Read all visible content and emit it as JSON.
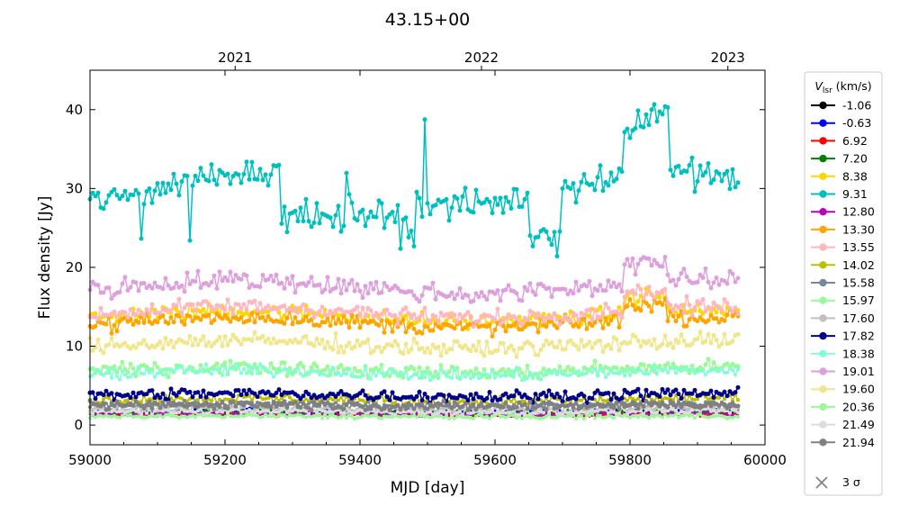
{
  "chart_data": {
    "type": "line",
    "title": "43.15+00",
    "xlabel": "MJD [day]",
    "ylabel": "Flux density [Jy]",
    "xlim": [
      59000,
      60000
    ],
    "ylim": [
      -2.5,
      45
    ],
    "xticks": [
      "59000",
      "59200",
      "59400",
      "59600",
      "59800",
      "60000"
    ],
    "yticks": [
      "0",
      "10",
      "20",
      "30",
      "40"
    ],
    "top_axis": {
      "ticks": [
        {
          "label": "2021",
          "mjd": 59215
        },
        {
          "label": "2022",
          "mjd": 59580
        },
        {
          "label": "2023",
          "mjd": 59945
        }
      ]
    },
    "legend": {
      "title_main": "V",
      "title_sub": "lsr",
      "title_unit": "(km/s)",
      "sigma_label": "3 σ",
      "sigma_color": "#808080",
      "placement": "outside-right"
    },
    "x_end": 59962,
    "series": [
      {
        "name": "-1.06",
        "color": "#000000",
        "base": 1.5,
        "noise": 0.2,
        "dot": 3
      },
      {
        "name": "-0.63",
        "color": "#0000ff",
        "base": 1.8,
        "noise": 0.2,
        "dot": 3
      },
      {
        "name": "6.92",
        "color": "#ff0000",
        "base": 1.3,
        "noise": 0.15,
        "dot": 3
      },
      {
        "name": "7.20",
        "color": "#008000",
        "base": 1.6,
        "noise": 0.2,
        "dot": 3
      },
      {
        "name": "8.38",
        "color": "#ffd700",
        "base": 13.8,
        "noise": 0.7,
        "dot": 5
      },
      {
        "name": "9.31",
        "color": "#00bfbf",
        "base": 29.5,
        "noise": 1.3,
        "dot": 5
      },
      {
        "name": "12.80",
        "color": "#bf00bf",
        "base": 1.4,
        "noise": 0.2,
        "dot": 3
      },
      {
        "name": "13.30",
        "color": "#ffa500",
        "base": 13.0,
        "noise": 0.7,
        "dot": 5
      },
      {
        "name": "13.55",
        "color": "#ffb6c1",
        "base": 14.3,
        "noise": 0.7,
        "dot": 5
      },
      {
        "name": "14.02",
        "color": "#bfbf00",
        "base": 3.2,
        "noise": 0.4,
        "dot": 4
      },
      {
        "name": "15.58",
        "color": "#778899",
        "base": 2.5,
        "noise": 0.3,
        "dot": 4
      },
      {
        "name": "15.97",
        "color": "#98fb98",
        "base": 7.0,
        "noise": 0.6,
        "dot": 5
      },
      {
        "name": "17.60",
        "color": "#c0c0c0",
        "base": 2.0,
        "noise": 0.3,
        "dot": 4
      },
      {
        "name": "17.82",
        "color": "#00008b",
        "base": 3.8,
        "noise": 0.5,
        "dot": 5
      },
      {
        "name": "18.38",
        "color": "#7fffd4",
        "base": 6.6,
        "noise": 0.5,
        "dot": 4
      },
      {
        "name": "19.01",
        "color": "#dda0dd",
        "base": 17.5,
        "noise": 0.9,
        "dot": 5
      },
      {
        "name": "19.60",
        "color": "#f0e68c",
        "base": 10.2,
        "noise": 0.7,
        "dot": 5
      },
      {
        "name": "20.36",
        "color": "#98fb98",
        "base": 1.1,
        "noise": 0.2,
        "dot": 4
      },
      {
        "name": "21.49",
        "color": "#dcdcdc",
        "base": 1.7,
        "noise": 0.25,
        "dot": 4
      },
      {
        "name": "21.94",
        "color": "#808080",
        "base": 2.5,
        "noise": 0.4,
        "dot": 5
      }
    ]
  }
}
